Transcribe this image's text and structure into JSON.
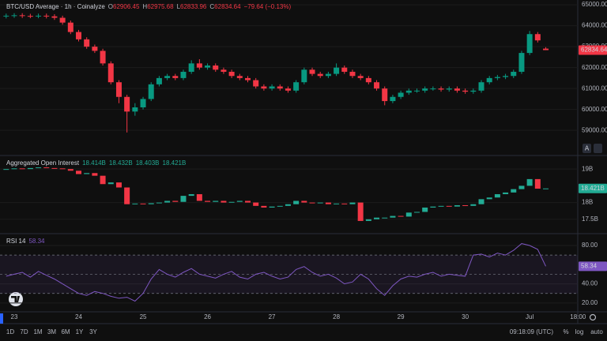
{
  "chart_data": [
    {
      "type": "candlestick",
      "title": "BTC/USD Average · 1h · Coinalyze",
      "header": [
        {
          "label": "O",
          "value": 62906.45
        },
        {
          "label": "H",
          "value": 62975.68
        },
        {
          "label": "L",
          "value": 62833.96
        },
        {
          "label": "C",
          "value": 62834.64
        }
      ],
      "change": "−79.64 (−0.13%)",
      "categories": [
        null,
        "23",
        null,
        null,
        null,
        null,
        null,
        null,
        null,
        "24",
        null,
        null,
        null,
        null,
        null,
        null,
        null,
        "25",
        null,
        null,
        null,
        null,
        null,
        null,
        null,
        "26",
        null,
        null,
        null,
        null,
        null,
        null,
        null,
        "27",
        null,
        null,
        null,
        null,
        null,
        null,
        null,
        "28",
        null,
        null,
        null,
        null,
        null,
        null,
        null,
        "29",
        null,
        null,
        null,
        null,
        null,
        null,
        null,
        "30",
        null,
        null,
        null,
        null,
        null,
        null,
        null,
        "Jul",
        null,
        null,
        null,
        null,
        null,
        "18:00"
      ],
      "open": [
        64450,
        64480,
        64500,
        64470,
        64460,
        64480,
        64450,
        64380,
        64150,
        63700,
        63350,
        63000,
        62800,
        62200,
        61300,
        60600,
        59900,
        60100,
        60500,
        61200,
        61500,
        61600,
        61500,
        61800,
        62200,
        62000,
        62100,
        61900,
        61800,
        61600,
        61500,
        61400,
        61100,
        61000,
        61100,
        61000,
        60900,
        61300,
        61900,
        61700,
        61600,
        61700,
        62000,
        61800,
        61600,
        61500,
        61300,
        61000,
        60400,
        60600,
        60800,
        60900,
        60900,
        61000,
        61000,
        60950,
        61000,
        60900,
        60850,
        60900,
        61300,
        61500,
        61550,
        61600,
        61800,
        62700,
        63600,
        62906.45,
        null,
        null,
        null,
        null
      ],
      "high": [
        64580,
        64600,
        64600,
        64570,
        64580,
        64580,
        64550,
        64480,
        64250,
        63800,
        63450,
        63100,
        62900,
        62300,
        61400,
        60700,
        60300,
        60600,
        61300,
        61600,
        61700,
        61700,
        61900,
        62350,
        62400,
        62200,
        62200,
        62000,
        61900,
        61700,
        61600,
        61500,
        61200,
        61200,
        61200,
        61100,
        61400,
        62000,
        62000,
        61800,
        61800,
        62200,
        62100,
        61900,
        61700,
        61600,
        61400,
        61100,
        60700,
        60900,
        61000,
        61000,
        61100,
        61100,
        61100,
        61100,
        61100,
        61000,
        61000,
        61400,
        61600,
        61650,
        61700,
        61900,
        62800,
        63750,
        63700,
        62975.68,
        null,
        null,
        null,
        null
      ],
      "low": [
        64350,
        64380,
        64370,
        64360,
        64360,
        64350,
        64280,
        64050,
        63600,
        63250,
        62900,
        62700,
        62100,
        61200,
        60300,
        58900,
        59700,
        60000,
        60400,
        61100,
        61400,
        61400,
        61400,
        61700,
        61900,
        61900,
        61800,
        61700,
        61500,
        61400,
        61300,
        61000,
        60900,
        60900,
        60900,
        60800,
        60800,
        61200,
        61600,
        61500,
        61500,
        61600,
        61700,
        61500,
        61400,
        61200,
        60900,
        60200,
        60300,
        60500,
        60700,
        60800,
        60800,
        60900,
        60850,
        60850,
        60800,
        60750,
        60750,
        60800,
        61200,
        61400,
        61450,
        61500,
        61700,
        62600,
        63200,
        62833.96,
        null,
        null,
        null,
        null
      ],
      "close": [
        64480,
        64500,
        64470,
        64460,
        64480,
        64450,
        64380,
        64150,
        63700,
        63350,
        63000,
        62800,
        62200,
        61300,
        60600,
        59900,
        60100,
        60500,
        61200,
        61500,
        61600,
        61500,
        61800,
        62200,
        62000,
        62100,
        61900,
        61800,
        61600,
        61500,
        61400,
        61100,
        61000,
        61100,
        61000,
        60900,
        61300,
        61900,
        61700,
        61600,
        61700,
        62000,
        61800,
        61600,
        61500,
        61300,
        61000,
        60400,
        60600,
        60800,
        60900,
        60900,
        61000,
        61000,
        60950,
        61000,
        60900,
        60850,
        60900,
        61300,
        61500,
        61550,
        61600,
        61800,
        62700,
        63600,
        63300,
        62834.64,
        null,
        null,
        null,
        null
      ],
      "up_color": "#089981",
      "down_color": "#f23645",
      "ylim": [
        57800,
        65230
      ],
      "yticks": [
        {
          "value": 59000,
          "label": "59000.00"
        },
        {
          "value": 60000,
          "label": "60000.00"
        },
        {
          "value": 61000,
          "label": "61000.00"
        },
        {
          "value": 62000,
          "label": "62000.00"
        },
        {
          "value": 63000,
          "label": "63000.00"
        },
        {
          "value": 64000,
          "label": "64000.00"
        },
        {
          "value": 65000,
          "label": "65000.00"
        }
      ]
    },
    {
      "type": "candlestick",
      "title": "Aggregated Open Interest",
      "header": [
        {
          "value": 18.414,
          "label": "18.414B"
        },
        {
          "value": 18.432,
          "label": "18.432B"
        },
        {
          "value": 18.403,
          "label": "18.403B"
        },
        {
          "value": 18.421,
          "label": "18.421B"
        }
      ],
      "values": [
        19.0,
        19.02,
        19.0,
        19.03,
        19.05,
        19.03,
        19.02,
        19.0,
        18.95,
        18.85,
        18.88,
        18.8,
        18.55,
        18.6,
        18.45,
        17.95,
        17.97,
        17.95,
        17.98,
        18.0,
        18.05,
        18.02,
        18.2,
        18.25,
        18.05,
        18.02,
        18.05,
        18.0,
        18.02,
        18.05,
        18.0,
        17.9,
        17.85,
        17.88,
        17.9,
        17.95,
        18.05,
        18.0,
        17.98,
        18.0,
        17.95,
        17.97,
        17.95,
        18.0,
        17.45,
        17.5,
        17.55,
        17.55,
        17.6,
        17.58,
        17.7,
        17.72,
        17.85,
        17.88,
        17.9,
        17.88,
        17.92,
        17.9,
        17.95,
        18.1,
        18.15,
        18.25,
        18.3,
        18.4,
        18.5,
        18.7,
        18.414,
        18.421,
        null,
        null,
        null,
        null
      ],
      "up_color": "#22ab94",
      "down_color": "#f23645",
      "ylim": [
        17.071,
        19.381
      ],
      "yticks": [
        {
          "value": 17.5,
          "label": "17.5B"
        },
        {
          "value": 18,
          "label": "18B"
        },
        {
          "value": 19,
          "label": "19B"
        }
      ]
    },
    {
      "type": "line",
      "title": "RSI 14",
      "values": [
        48,
        50,
        52,
        47,
        53,
        49,
        45,
        40,
        35,
        30,
        28,
        32,
        30,
        27,
        25,
        26,
        22,
        30,
        45,
        55,
        50,
        47,
        52,
        56,
        50,
        48,
        46,
        50,
        53,
        47,
        45,
        50,
        52,
        48,
        45,
        47,
        55,
        58,
        52,
        48,
        50,
        46,
        40,
        42,
        50,
        45,
        35,
        28,
        38,
        45,
        48,
        47,
        50,
        52,
        48,
        50,
        49,
        48,
        70,
        71,
        68,
        72,
        70,
        75,
        82,
        80,
        76,
        58.34,
        null,
        null,
        null,
        null
      ],
      "color": "#7e57c2",
      "levels": [
        70,
        50,
        30
      ],
      "ylim": [
        10.86,
        91.52
      ],
      "yticks": [
        {
          "value": 20,
          "label": "20.00"
        },
        {
          "value": 40,
          "label": "40.00"
        },
        {
          "value": 80,
          "label": "80.00"
        }
      ]
    }
  ],
  "toolbar": {
    "ranges": [
      "1D",
      "7D",
      "1M",
      "3M",
      "6M",
      "1Y",
      "3Y"
    ],
    "clock": "09:18:09 (UTC)",
    "options": [
      "%",
      "log",
      "auto"
    ],
    "scale_mode": "A"
  }
}
